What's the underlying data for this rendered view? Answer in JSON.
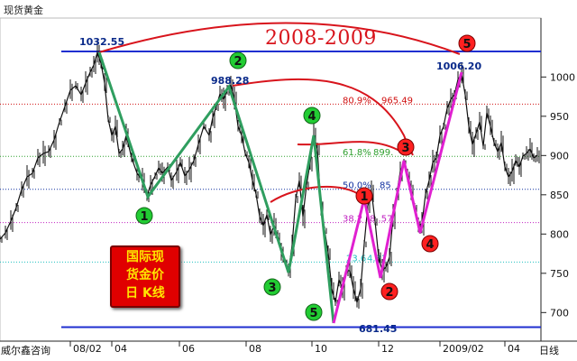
{
  "window": {
    "title": "现货黄金"
  },
  "chart_title": "2008-2009",
  "stamp": {
    "line1": "国际现",
    "line2": "货金价",
    "line3": "日 K线"
  },
  "footer": {
    "vendor": "威尔鑫咨询",
    "period": "日线"
  },
  "colors": {
    "candle": "#111111",
    "green_wave": "#2f9e5f",
    "magenta_wave": "#e020d0",
    "arc": "#d8141c",
    "frame_line": "#1f2fd0"
  },
  "chart_data": {
    "type": "candlestick",
    "instrument": "现货黄金",
    "y_axis": {
      "ticks": [
        700,
        750,
        800,
        850,
        900,
        950,
        1000
      ],
      "range": [
        680,
        1040
      ]
    },
    "x_axis": {
      "tick_labels": [
        "08/02",
        "04",
        "06",
        "08",
        "10",
        "12",
        "2009/02",
        "04"
      ]
    },
    "price_labels": [
      {
        "text": "1032.55",
        "value": 1032.55
      },
      {
        "text": "988.28",
        "value": 988.28
      },
      {
        "text": "1006.20",
        "value": 1006.2
      },
      {
        "text": "681.45",
        "value": 681.45
      }
    ],
    "fib_levels": [
      {
        "label": "80.9%",
        "price_text": "965.49",
        "value": 965.49,
        "color": "#d01010"
      },
      {
        "label": "61.8%",
        "price_text": "899.",
        "value": 899,
        "color": "#2fa02f"
      },
      {
        "label": "50.0%",
        "price_text": "85",
        "value": 857,
        "color": "#1030a0"
      },
      {
        "label": "38.2",
        "price_text": "8  .57",
        "value": 814.57,
        "color": "#c020c0"
      },
      {
        "label": "23.6",
        "price_text": "4.31",
        "value": 764.31,
        "color": "#20c0c0"
      }
    ],
    "green_wave_labels": [
      "1",
      "2",
      "3",
      "4",
      "5"
    ],
    "red_wave_labels": [
      "1",
      "2",
      "3",
      "4",
      "5"
    ]
  }
}
